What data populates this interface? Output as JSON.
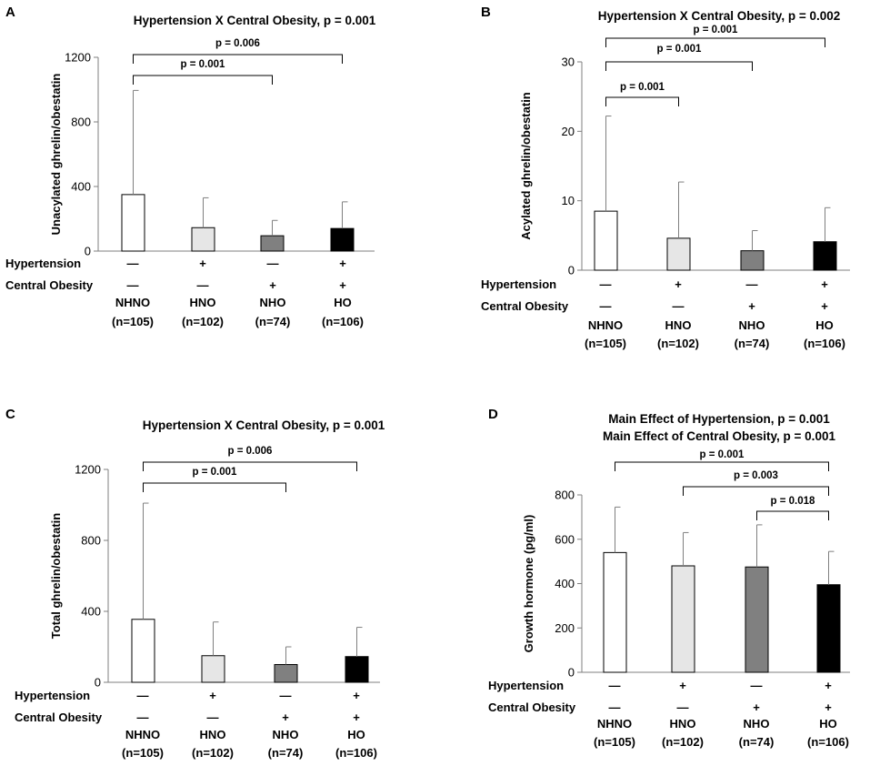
{
  "chart_data": [
    {
      "panel": "A",
      "type": "bar",
      "title_lines": [
        "Hypertension X Central Obesity, p = 0.001"
      ],
      "ylabel": "Unacylated ghrelin/obestatin",
      "ylim": [
        0,
        1200
      ],
      "yticks": [
        0,
        400,
        800,
        1200
      ],
      "categories": [
        "NHNO",
        "HNO",
        "NHO",
        "HO"
      ],
      "n_labels": [
        "(n=105)",
        "(n=102)",
        "(n=74)",
        "(n=106)"
      ],
      "values": [
        350,
        145,
        95,
        140
      ],
      "errors": [
        645,
        185,
        95,
        165
      ],
      "bar_colors": [
        "#ffffff",
        "#e6e6e6",
        "#808080",
        "#000000"
      ],
      "row_labels": [
        "Hypertension",
        "Central Obesity"
      ],
      "hypertension_signs": [
        "—",
        "+",
        "—",
        "+"
      ],
      "obesity_signs": [
        "—",
        "—",
        "+",
        "+"
      ],
      "comparisons": [
        {
          "from": 0,
          "to": 3,
          "label": "p = 0.006"
        },
        {
          "from": 0,
          "to": 2,
          "label": "p = 0.001"
        }
      ]
    },
    {
      "panel": "B",
      "type": "bar",
      "title_lines": [
        "Hypertension X Central Obesity, p = 0.002"
      ],
      "ylabel": "Acylated ghrelin/obestatin",
      "ylim": [
        0,
        30
      ],
      "yticks": [
        0,
        10,
        20,
        30
      ],
      "categories": [
        "NHNO",
        "HNO",
        "NHO",
        "HO"
      ],
      "n_labels": [
        "(n=105)",
        "(n=102)",
        "(n=74)",
        "(n=106)"
      ],
      "values": [
        8.5,
        4.6,
        2.8,
        4.1
      ],
      "errors": [
        13.7,
        8.1,
        2.9,
        4.9
      ],
      "bar_colors": [
        "#ffffff",
        "#e6e6e6",
        "#808080",
        "#000000"
      ],
      "row_labels": [
        "Hypertension",
        "Central Obesity"
      ],
      "hypertension_signs": [
        "—",
        "+",
        "—",
        "+"
      ],
      "obesity_signs": [
        "—",
        "—",
        "+",
        "+"
      ],
      "comparisons": [
        {
          "from": 0,
          "to": 3,
          "label": "p = 0.001"
        },
        {
          "from": 0,
          "to": 2,
          "label": "p = 0.001"
        },
        {
          "from": 0,
          "to": 1,
          "label": "p = 0.001"
        }
      ]
    },
    {
      "panel": "C",
      "type": "bar",
      "title_lines": [
        "Hypertension X Central Obesity, p = 0.001"
      ],
      "ylabel": "Total ghrelin/obestatin",
      "ylim": [
        0,
        1200
      ],
      "yticks": [
        0,
        400,
        800,
        1200
      ],
      "categories": [
        "NHNO",
        "HNO",
        "NHO",
        "HO"
      ],
      "n_labels": [
        "(n=105)",
        "(n=102)",
        "(n=74)",
        "(n=106)"
      ],
      "values": [
        355,
        150,
        100,
        145
      ],
      "errors": [
        655,
        190,
        100,
        165
      ],
      "bar_colors": [
        "#ffffff",
        "#e6e6e6",
        "#808080",
        "#000000"
      ],
      "row_labels": [
        "Hypertension",
        "Central Obesity"
      ],
      "hypertension_signs": [
        "—",
        "+",
        "—",
        "+"
      ],
      "obesity_signs": [
        "—",
        "—",
        "+",
        "+"
      ],
      "comparisons": [
        {
          "from": 0,
          "to": 3,
          "label": "p = 0.006"
        },
        {
          "from": 0,
          "to": 2,
          "label": "p = 0.001"
        }
      ]
    },
    {
      "panel": "D",
      "type": "bar",
      "title_lines": [
        "Main Effect of Hypertension, p = 0.001",
        "Main Effect of Central Obesity, p = 0.001"
      ],
      "ylabel": "Growth hormone (pg/ml)",
      "ylim": [
        0,
        800
      ],
      "yticks": [
        0,
        200,
        400,
        600,
        800
      ],
      "categories": [
        "NHNO",
        "HNO",
        "NHO",
        "HO"
      ],
      "n_labels": [
        "(n=105)",
        "(n=102)",
        "(n=74)",
        "(n=106)"
      ],
      "values": [
        540,
        480,
        475,
        395
      ],
      "errors": [
        205,
        150,
        190,
        150
      ],
      "bar_colors": [
        "#ffffff",
        "#e6e6e6",
        "#808080",
        "#000000"
      ],
      "row_labels": [
        "Hypertension",
        "Central Obesity"
      ],
      "hypertension_signs": [
        "—",
        "+",
        "—",
        "+"
      ],
      "obesity_signs": [
        "—",
        "—",
        "+",
        "+"
      ],
      "comparisons": [
        {
          "from": 0,
          "to": 3,
          "label": "p = 0.001"
        },
        {
          "from": 1,
          "to": 3,
          "label": "p = 0.003"
        },
        {
          "from": 2,
          "to": 3,
          "label": "p = 0.018"
        }
      ]
    }
  ]
}
